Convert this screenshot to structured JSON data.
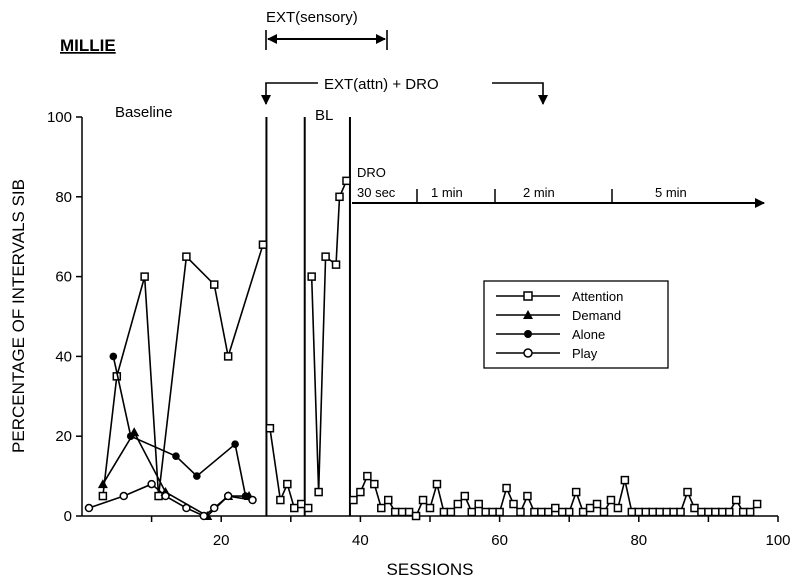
{
  "chart_data": {
    "type": "line",
    "subject": "MILLIE",
    "xlabel": "SESSIONS",
    "ylabel": "PERCENTAGE OF INTERVALS SIB",
    "xlim": [
      0,
      100
    ],
    "ylim": [
      0,
      100
    ],
    "xticks": [
      20,
      40,
      60,
      80,
      100
    ],
    "yticks": [
      0,
      20,
      40,
      60,
      80,
      100
    ],
    "legend_position": "center-right",
    "series": [
      {
        "name": "Attention",
        "marker": "open-square",
        "segments": [
          [
            [
              3,
              5
            ],
            [
              5,
              35
            ],
            [
              9,
              60
            ],
            [
              11,
              5
            ],
            [
              15,
              65
            ],
            [
              19,
              58
            ],
            [
              21,
              40
            ],
            [
              26,
              68
            ]
          ],
          [
            [
              27,
              22
            ],
            [
              28.5,
              4
            ],
            [
              29.5,
              8
            ],
            [
              30.5,
              2
            ],
            [
              31.5,
              3
            ],
            [
              32.5,
              2
            ]
          ],
          [
            [
              33,
              60
            ],
            [
              34,
              6
            ],
            [
              35,
              65
            ],
            [
              36.5,
              63
            ],
            [
              37,
              80
            ],
            [
              38,
              84
            ]
          ],
          [
            [
              39,
              4
            ],
            [
              40,
              6
            ],
            [
              41,
              10
            ],
            [
              42,
              8
            ],
            [
              43,
              2
            ],
            [
              44,
              4
            ],
            [
              45,
              1
            ],
            [
              46,
              1
            ],
            [
              47,
              1
            ],
            [
              48,
              0
            ],
            [
              49,
              4
            ],
            [
              50,
              2
            ],
            [
              51,
              8
            ],
            [
              52,
              1
            ],
            [
              53,
              1
            ],
            [
              54,
              3
            ],
            [
              55,
              5
            ],
            [
              56,
              1
            ],
            [
              57,
              3
            ],
            [
              58,
              1
            ],
            [
              59,
              1
            ],
            [
              60,
              1
            ],
            [
              61,
              7
            ],
            [
              62,
              3
            ],
            [
              63,
              1
            ],
            [
              64,
              5
            ],
            [
              65,
              1
            ],
            [
              66,
              1
            ],
            [
              67,
              1
            ],
            [
              68,
              2
            ],
            [
              69,
              1
            ],
            [
              70,
              1
            ],
            [
              71,
              6
            ],
            [
              72,
              1
            ],
            [
              73,
              2
            ],
            [
              74,
              3
            ],
            [
              75,
              1
            ],
            [
              76,
              4
            ],
            [
              77,
              2
            ],
            [
              78,
              9
            ],
            [
              79,
              1
            ],
            [
              80,
              1
            ],
            [
              81,
              1
            ],
            [
              82,
              1
            ],
            [
              83,
              1
            ],
            [
              84,
              1
            ],
            [
              85,
              1
            ],
            [
              86,
              1
            ],
            [
              87,
              6
            ],
            [
              88,
              2
            ],
            [
              89,
              1
            ],
            [
              90,
              1
            ],
            [
              91,
              1
            ],
            [
              92,
              1
            ],
            [
              93,
              1
            ],
            [
              94,
              4
            ],
            [
              95,
              1
            ],
            [
              96,
              1
            ],
            [
              97,
              3
            ]
          ]
        ]
      },
      {
        "name": "Demand",
        "marker": "filled-triangle",
        "segments": [
          [
            [
              3,
              8
            ],
            [
              7.5,
              21
            ],
            [
              12,
              6
            ],
            [
              18,
              0
            ],
            [
              21,
              5
            ],
            [
              24,
              5
            ]
          ]
        ]
      },
      {
        "name": "Alone",
        "marker": "filled-circle",
        "segments": [
          [
            [
              4.5,
              40
            ],
            [
              7,
              20
            ],
            [
              13.5,
              15
            ],
            [
              16.5,
              10
            ],
            [
              22,
              18
            ],
            [
              23.5,
              5
            ]
          ]
        ]
      },
      {
        "name": "Play",
        "marker": "open-circle",
        "segments": [
          [
            [
              1,
              2
            ],
            [
              6,
              5
            ],
            [
              10,
              8
            ],
            [
              12,
              5
            ],
            [
              15,
              2
            ],
            [
              17.5,
              0
            ],
            [
              19,
              2
            ],
            [
              21,
              5
            ],
            [
              24.5,
              4
            ]
          ]
        ]
      }
    ],
    "phase_lines": [
      26.5,
      32,
      38.5
    ],
    "annotations": {
      "baseline": "Baseline",
      "bl": "BL",
      "ext_sensory": "EXT(sensory)",
      "ext_attn_dro": "EXT(attn) + DRO",
      "dro": "DRO",
      "dro_steps": [
        "30 sec",
        "1 min",
        "2 min",
        "5 min"
      ]
    }
  }
}
